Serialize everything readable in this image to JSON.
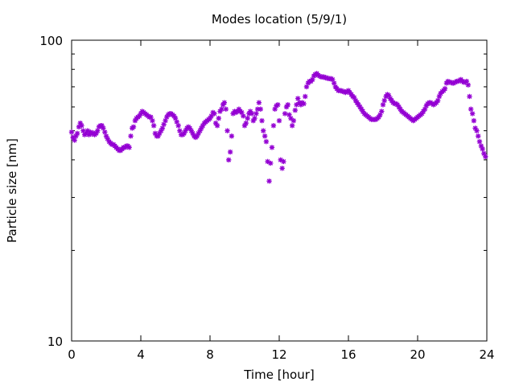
{
  "chart_data": {
    "type": "scatter",
    "title": "Modes location (5/9/1)",
    "xlabel": "Time [hour]",
    "ylabel": "Particle size [nm]",
    "xlim": [
      0,
      24
    ],
    "ylim": [
      10,
      100
    ],
    "yscale": "log",
    "grid": false,
    "marker": "asterisk",
    "color": "#9400d3",
    "xticks": [
      0,
      4,
      8,
      12,
      16,
      20,
      24
    ],
    "xtick_labels": [
      "0",
      "4",
      "8",
      "12",
      "16",
      "20",
      "24"
    ],
    "yticks_major": [
      10,
      100
    ],
    "ytick_labels": [
      "10",
      "100"
    ],
    "series": [
      {
        "points": [
          [
            0.0,
            49.5
          ],
          [
            0.08,
            47.5
          ],
          [
            0.17,
            46.5
          ],
          [
            0.25,
            48
          ],
          [
            0.33,
            49
          ],
          [
            0.42,
            51.5
          ],
          [
            0.5,
            53
          ],
          [
            0.58,
            52
          ],
          [
            0.67,
            50
          ],
          [
            0.75,
            48.5
          ],
          [
            0.83,
            49
          ],
          [
            0.92,
            50
          ],
          [
            1.0,
            48.5
          ],
          [
            1.08,
            49.5
          ],
          [
            1.17,
            48.8
          ],
          [
            1.25,
            49.2
          ],
          [
            1.33,
            48.5
          ],
          [
            1.42,
            49
          ],
          [
            1.5,
            50
          ],
          [
            1.58,
            51.5
          ],
          [
            1.67,
            52
          ],
          [
            1.75,
            52
          ],
          [
            1.83,
            51
          ],
          [
            1.92,
            49.5
          ],
          [
            2.0,
            48
          ],
          [
            2.08,
            47
          ],
          [
            2.17,
            46
          ],
          [
            2.25,
            45.5
          ],
          [
            2.33,
            45
          ],
          [
            2.42,
            45
          ],
          [
            2.5,
            44.5
          ],
          [
            2.58,
            44
          ],
          [
            2.67,
            43.5
          ],
          [
            2.75,
            43
          ],
          [
            2.83,
            43
          ],
          [
            2.92,
            43.5
          ],
          [
            3.0,
            44
          ],
          [
            3.08,
            44
          ],
          [
            3.17,
            44.5
          ],
          [
            3.25,
            44.5
          ],
          [
            3.33,
            44
          ],
          [
            3.42,
            48
          ],
          [
            3.5,
            51
          ],
          [
            3.58,
            51.5
          ],
          [
            3.67,
            54
          ],
          [
            3.75,
            55
          ],
          [
            3.83,
            55.5
          ],
          [
            3.92,
            56
          ],
          [
            4.0,
            57
          ],
          [
            4.08,
            58
          ],
          [
            4.17,
            57.5
          ],
          [
            4.25,
            57
          ],
          [
            4.33,
            56.5
          ],
          [
            4.42,
            56
          ],
          [
            4.5,
            55.5
          ],
          [
            4.58,
            55.5
          ],
          [
            4.67,
            54
          ],
          [
            4.75,
            52
          ],
          [
            4.83,
            49
          ],
          [
            4.92,
            48
          ],
          [
            5.0,
            48
          ],
          [
            5.08,
            49
          ],
          [
            5.17,
            50
          ],
          [
            5.25,
            51
          ],
          [
            5.33,
            52.5
          ],
          [
            5.42,
            54
          ],
          [
            5.5,
            55.5
          ],
          [
            5.58,
            56.5
          ],
          [
            5.67,
            57
          ],
          [
            5.75,
            57
          ],
          [
            5.83,
            56.5
          ],
          [
            5.92,
            56
          ],
          [
            6.0,
            55
          ],
          [
            6.08,
            53.5
          ],
          [
            6.17,
            52
          ],
          [
            6.25,
            50
          ],
          [
            6.33,
            48.5
          ],
          [
            6.42,
            48.5
          ],
          [
            6.5,
            49
          ],
          [
            6.58,
            50
          ],
          [
            6.67,
            51
          ],
          [
            6.75,
            51.5
          ],
          [
            6.83,
            51
          ],
          [
            6.92,
            50
          ],
          [
            7.0,
            49
          ],
          [
            7.08,
            48
          ],
          [
            7.17,
            47.5
          ],
          [
            7.25,
            48
          ],
          [
            7.33,
            49
          ],
          [
            7.42,
            50
          ],
          [
            7.5,
            51
          ],
          [
            7.58,
            52
          ],
          [
            7.67,
            53
          ],
          [
            7.75,
            53.5
          ],
          [
            7.83,
            54
          ],
          [
            7.92,
            54.5
          ],
          [
            8.0,
            55
          ],
          [
            8.08,
            56
          ],
          [
            8.17,
            57.5
          ],
          [
            8.25,
            57
          ],
          [
            8.33,
            53
          ],
          [
            8.42,
            52
          ],
          [
            8.5,
            55
          ],
          [
            8.58,
            58
          ],
          [
            8.67,
            59
          ],
          [
            8.75,
            61
          ],
          [
            8.83,
            62
          ],
          [
            8.92,
            59
          ],
          [
            9.0,
            50
          ],
          [
            9.08,
            40
          ],
          [
            9.17,
            42.5
          ],
          [
            9.25,
            48
          ],
          [
            9.33,
            57
          ],
          [
            9.42,
            58
          ],
          [
            9.5,
            57.5
          ],
          [
            9.58,
            58
          ],
          [
            9.67,
            59
          ],
          [
            9.75,
            58
          ],
          [
            9.83,
            57.5
          ],
          [
            9.92,
            56
          ],
          [
            10.0,
            52
          ],
          [
            10.08,
            53
          ],
          [
            10.17,
            55
          ],
          [
            10.25,
            57
          ],
          [
            10.33,
            58
          ],
          [
            10.42,
            57
          ],
          [
            10.5,
            54
          ],
          [
            10.58,
            55
          ],
          [
            10.67,
            57
          ],
          [
            10.75,
            59
          ],
          [
            10.83,
            62
          ],
          [
            10.92,
            59
          ],
          [
            11.0,
            54
          ],
          [
            11.08,
            50
          ],
          [
            11.17,
            48
          ],
          [
            11.25,
            46
          ],
          [
            11.33,
            39.5
          ],
          [
            11.42,
            34
          ],
          [
            11.5,
            39
          ],
          [
            11.58,
            44
          ],
          [
            11.67,
            52
          ],
          [
            11.75,
            59
          ],
          [
            11.83,
            60.5
          ],
          [
            11.92,
            61
          ],
          [
            12.0,
            54
          ],
          [
            12.08,
            40
          ],
          [
            12.17,
            37.5
          ],
          [
            12.25,
            39.5
          ],
          [
            12.33,
            57
          ],
          [
            12.42,
            60
          ],
          [
            12.5,
            61
          ],
          [
            12.58,
            56.5
          ],
          [
            12.67,
            55
          ],
          [
            12.75,
            52
          ],
          [
            12.83,
            54
          ],
          [
            12.92,
            58.5
          ],
          [
            13.0,
            61
          ],
          [
            13.08,
            64
          ],
          [
            13.17,
            62
          ],
          [
            13.25,
            61
          ],
          [
            13.33,
            62
          ],
          [
            13.42,
            61.5
          ],
          [
            13.5,
            65
          ],
          [
            13.58,
            70
          ],
          [
            13.67,
            72
          ],
          [
            13.75,
            73
          ],
          [
            13.83,
            73
          ],
          [
            13.92,
            74
          ],
          [
            14.0,
            76
          ],
          [
            14.08,
            77
          ],
          [
            14.17,
            77.5
          ],
          [
            14.25,
            76.5
          ],
          [
            14.33,
            76
          ],
          [
            14.42,
            75.5
          ],
          [
            14.5,
            75.5
          ],
          [
            14.58,
            75.5
          ],
          [
            14.67,
            75
          ],
          [
            14.75,
            75
          ],
          [
            14.83,
            74.5
          ],
          [
            14.92,
            74.5
          ],
          [
            15.0,
            74.5
          ],
          [
            15.08,
            74
          ],
          [
            15.17,
            72
          ],
          [
            15.25,
            70
          ],
          [
            15.33,
            69
          ],
          [
            15.42,
            68
          ],
          [
            15.5,
            68
          ],
          [
            15.58,
            68
          ],
          [
            15.67,
            67.5
          ],
          [
            15.75,
            67.5
          ],
          [
            15.83,
            67
          ],
          [
            15.92,
            67.5
          ],
          [
            16.0,
            68
          ],
          [
            16.08,
            67
          ],
          [
            16.17,
            66
          ],
          [
            16.25,
            65
          ],
          [
            16.33,
            64.5
          ],
          [
            16.42,
            63
          ],
          [
            16.5,
            62
          ],
          [
            16.58,
            61
          ],
          [
            16.67,
            60
          ],
          [
            16.75,
            59
          ],
          [
            16.83,
            58
          ],
          [
            16.92,
            57
          ],
          [
            17.0,
            56.5
          ],
          [
            17.08,
            56
          ],
          [
            17.17,
            55.5
          ],
          [
            17.25,
            55
          ],
          [
            17.33,
            54.5
          ],
          [
            17.42,
            54.5
          ],
          [
            17.5,
            54.5
          ],
          [
            17.58,
            54.5
          ],
          [
            17.67,
            55
          ],
          [
            17.75,
            55.5
          ],
          [
            17.83,
            56.5
          ],
          [
            17.92,
            58
          ],
          [
            18.0,
            61
          ],
          [
            18.08,
            63
          ],
          [
            18.17,
            65
          ],
          [
            18.25,
            66
          ],
          [
            18.33,
            65.5
          ],
          [
            18.42,
            64
          ],
          [
            18.5,
            63
          ],
          [
            18.58,
            62
          ],
          [
            18.67,
            61.5
          ],
          [
            18.75,
            61.5
          ],
          [
            18.83,
            61
          ],
          [
            18.92,
            60
          ],
          [
            19.0,
            59
          ],
          [
            19.08,
            58
          ],
          [
            19.17,
            57.5
          ],
          [
            19.25,
            57
          ],
          [
            19.33,
            56.5
          ],
          [
            19.42,
            56
          ],
          [
            19.5,
            55.5
          ],
          [
            19.58,
            55
          ],
          [
            19.67,
            54.5
          ],
          [
            19.75,
            54
          ],
          [
            19.83,
            54.5
          ],
          [
            19.92,
            55
          ],
          [
            20.0,
            55.5
          ],
          [
            20.08,
            56
          ],
          [
            20.17,
            56.5
          ],
          [
            20.25,
            57
          ],
          [
            20.33,
            58
          ],
          [
            20.42,
            59
          ],
          [
            20.5,
            60.5
          ],
          [
            20.58,
            61.5
          ],
          [
            20.67,
            62
          ],
          [
            20.75,
            62
          ],
          [
            20.83,
            61.5
          ],
          [
            20.92,
            61
          ],
          [
            21.0,
            61.5
          ],
          [
            21.08,
            62
          ],
          [
            21.17,
            63
          ],
          [
            21.25,
            65
          ],
          [
            21.33,
            66.5
          ],
          [
            21.42,
            67.5
          ],
          [
            21.5,
            68
          ],
          [
            21.58,
            69
          ],
          [
            21.67,
            72
          ],
          [
            21.75,
            73
          ],
          [
            21.83,
            72.5
          ],
          [
            21.92,
            72.5
          ],
          [
            22.0,
            72
          ],
          [
            22.08,
            72
          ],
          [
            22.17,
            72.5
          ],
          [
            22.25,
            73
          ],
          [
            22.33,
            73
          ],
          [
            22.42,
            73.5
          ],
          [
            22.5,
            74
          ],
          [
            22.58,
            73
          ],
          [
            22.67,
            72.5
          ],
          [
            22.75,
            72.5
          ],
          [
            22.83,
            73
          ],
          [
            22.92,
            71
          ],
          [
            23.0,
            65
          ],
          [
            23.08,
            59
          ],
          [
            23.17,
            57
          ],
          [
            23.25,
            54
          ],
          [
            23.33,
            51
          ],
          [
            23.42,
            50
          ],
          [
            23.5,
            48
          ],
          [
            23.58,
            46
          ],
          [
            23.67,
            44.5
          ],
          [
            23.75,
            43.5
          ],
          [
            23.83,
            42
          ],
          [
            23.92,
            41
          ]
        ]
      }
    ]
  }
}
